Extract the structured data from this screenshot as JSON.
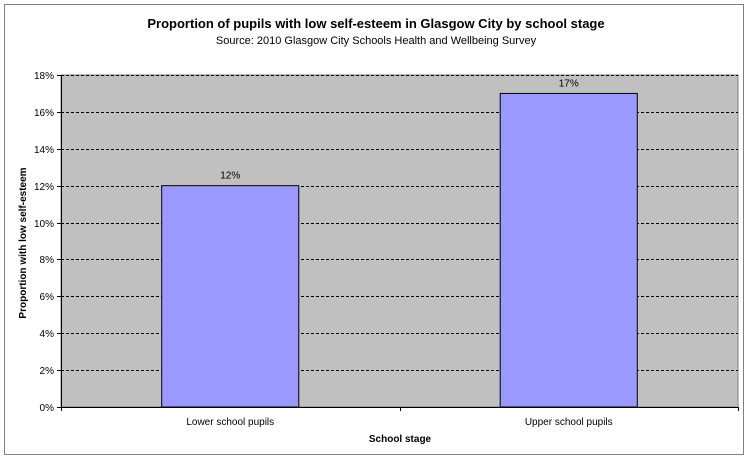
{
  "chart_data": {
    "type": "bar",
    "title": "Proportion of pupils with low self-esteem in Glasgow City by school stage",
    "subtitle": "Source: 2010 Glasgow City Schools Health and Wellbeing Survey",
    "xlabel": "School stage",
    "ylabel": "Proportion with low self-esteem",
    "categories": [
      "Lower school pupils",
      "Upper school pupils"
    ],
    "values": [
      12,
      17
    ],
    "data_labels": [
      "12%",
      "17%"
    ],
    "ylim": [
      0,
      18
    ],
    "y_ticks": [
      0,
      2,
      4,
      6,
      8,
      10,
      12,
      14,
      16,
      18
    ],
    "y_tick_labels": [
      "0%",
      "2%",
      "4%",
      "6%",
      "8%",
      "10%",
      "12%",
      "14%",
      "16%",
      "18%"
    ],
    "grid": true,
    "legend": "none",
    "colors": {
      "bar_fill": "#9999ff",
      "bar_stroke": "#000000",
      "plot_background": "#c0c0c0",
      "gridline": "#000000",
      "frame": "#808080"
    }
  }
}
